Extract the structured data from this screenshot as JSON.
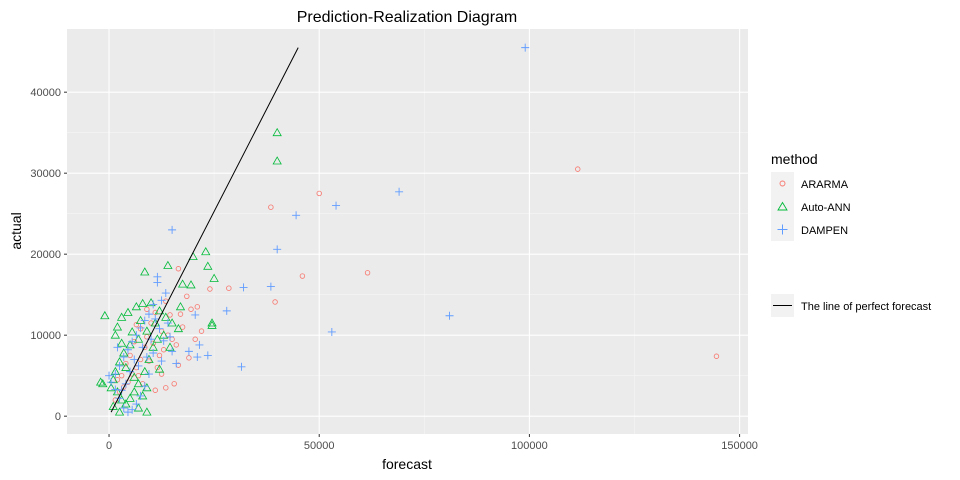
{
  "chart_data": {
    "type": "scatter",
    "title": "Prediction-Realization Diagram",
    "xlabel": "forecast",
    "ylabel": "actual",
    "xlim": [
      -10000,
      152000
    ],
    "ylim": [
      -2200,
      47800
    ],
    "x_ticks": [
      0,
      50000,
      100000,
      150000
    ],
    "x_tick_labels": [
      "0",
      "50000",
      "100000",
      "150000"
    ],
    "y_ticks": [
      0,
      10000,
      20000,
      30000,
      40000
    ],
    "y_tick_labels": [
      "0",
      "10000",
      "20000",
      "30000",
      "40000"
    ],
    "grid": true,
    "legend_position": "right",
    "legend": {
      "title": "method",
      "line_label": "The line of perfect forecast"
    },
    "perfect_forecast_line": {
      "x": [
        500,
        45000
      ],
      "y": [
        500,
        45500
      ]
    },
    "series": [
      {
        "name": "ARARMA",
        "marker": "circle",
        "color": "#F8766D",
        "points": [
          [
            111500,
            30500
          ],
          [
            144500,
            7400
          ],
          [
            61500,
            17700
          ],
          [
            50000,
            27500
          ],
          [
            46000,
            17300
          ],
          [
            38500,
            25800
          ],
          [
            39500,
            14100
          ],
          [
            28500,
            15800
          ],
          [
            24000,
            15700
          ],
          [
            19500,
            13200
          ],
          [
            21000,
            13500
          ],
          [
            16500,
            18200
          ],
          [
            18500,
            14800
          ],
          [
            17500,
            11000
          ],
          [
            15000,
            9500
          ],
          [
            13000,
            8200
          ],
          [
            12000,
            7500
          ],
          [
            14000,
            10000
          ],
          [
            15500,
            4000
          ],
          [
            16500,
            6300
          ],
          [
            13500,
            3500
          ],
          [
            11000,
            12800
          ],
          [
            10000,
            11500
          ],
          [
            9000,
            9800
          ],
          [
            8500,
            8500
          ],
          [
            7500,
            7000
          ],
          [
            6500,
            6000
          ],
          [
            5500,
            5200
          ],
          [
            4500,
            4200
          ],
          [
            3500,
            3600
          ],
          [
            2500,
            3000
          ],
          [
            1500,
            2000
          ],
          [
            9500,
            6800
          ],
          [
            10500,
            9000
          ],
          [
            12500,
            10500
          ],
          [
            14500,
            12500
          ],
          [
            11500,
            6000
          ],
          [
            6000,
            9200
          ],
          [
            7000,
            5000
          ],
          [
            8000,
            4000
          ],
          [
            5000,
            7500
          ],
          [
            4000,
            6500
          ],
          [
            3000,
            5000
          ],
          [
            2000,
            4500
          ],
          [
            16000,
            8800
          ],
          [
            17000,
            12600
          ],
          [
            22000,
            10500
          ],
          [
            19000,
            7200
          ],
          [
            20500,
            9500
          ],
          [
            13500,
            14200
          ],
          [
            9000,
            13200
          ],
          [
            7500,
            10800
          ],
          [
            6500,
            11300
          ],
          [
            12500,
            5200
          ],
          [
            11000,
            3200
          ]
        ]
      },
      {
        "name": "Auto-ANN",
        "marker": "triangle",
        "color": "#00BA38",
        "points": [
          [
            40000,
            35000
          ],
          [
            40000,
            31500
          ],
          [
            23000,
            20300
          ],
          [
            23500,
            18500
          ],
          [
            25000,
            17000
          ],
          [
            20000,
            19700
          ],
          [
            19500,
            16200
          ],
          [
            17500,
            16300
          ],
          [
            14000,
            18600
          ],
          [
            8500,
            17800
          ],
          [
            24500,
            11200
          ],
          [
            24500,
            11500
          ],
          [
            17000,
            13500
          ],
          [
            -1000,
            12400
          ],
          [
            -1500,
            4000
          ],
          [
            -2000,
            4200
          ],
          [
            1500,
            10000
          ],
          [
            2000,
            11000
          ],
          [
            3000,
            12200
          ],
          [
            4500,
            12800
          ],
          [
            6500,
            13500
          ],
          [
            8000,
            13900
          ],
          [
            10000,
            14000
          ],
          [
            12000,
            13000
          ],
          [
            13500,
            12200
          ],
          [
            15000,
            11500
          ],
          [
            16500,
            10800
          ],
          [
            11000,
            11500
          ],
          [
            9000,
            10500
          ],
          [
            7000,
            9500
          ],
          [
            5000,
            8800
          ],
          [
            3500,
            7800
          ],
          [
            2500,
            6700
          ],
          [
            1500,
            5500
          ],
          [
            1000,
            4500
          ],
          [
            500,
            3500
          ],
          [
            2000,
            3000
          ],
          [
            3000,
            2000
          ],
          [
            4000,
            1500
          ],
          [
            5000,
            2200
          ],
          [
            6000,
            3000
          ],
          [
            7000,
            4000
          ],
          [
            8500,
            5500
          ],
          [
            9500,
            7000
          ],
          [
            10500,
            8500
          ],
          [
            11500,
            9500
          ],
          [
            13000,
            10000
          ],
          [
            9000,
            3500
          ],
          [
            8000,
            2500
          ],
          [
            7000,
            1000
          ],
          [
            9000,
            500
          ],
          [
            6000,
            4800
          ],
          [
            4000,
            6000
          ],
          [
            3000,
            9000
          ],
          [
            12000,
            5800
          ],
          [
            14500,
            8500
          ],
          [
            2500,
            500
          ],
          [
            1000,
            1200
          ],
          [
            5500,
            10400
          ],
          [
            7500,
            11800
          ]
        ]
      },
      {
        "name": "DAMPEN",
        "marker": "plus",
        "color": "#619CFF",
        "points": [
          [
            99000,
            45500
          ],
          [
            69000,
            27700
          ],
          [
            54000,
            26000
          ],
          [
            44500,
            24800
          ],
          [
            40000,
            20600
          ],
          [
            38500,
            16000
          ],
          [
            53000,
            10400
          ],
          [
            81000,
            12400
          ],
          [
            32000,
            15900
          ],
          [
            31500,
            6100
          ],
          [
            28000,
            13000
          ],
          [
            23500,
            7500
          ],
          [
            21500,
            8800
          ],
          [
            21000,
            7300
          ],
          [
            19000,
            8000
          ],
          [
            20500,
            12500
          ],
          [
            15000,
            23000
          ],
          [
            11500,
            17200
          ],
          [
            11500,
            16500
          ],
          [
            13500,
            15200
          ],
          [
            12500,
            14300
          ],
          [
            10500,
            13800
          ],
          [
            9500,
            12600
          ],
          [
            8500,
            11800
          ],
          [
            7500,
            10900
          ],
          [
            6500,
            10000
          ],
          [
            5500,
            9200
          ],
          [
            4500,
            8200
          ],
          [
            3500,
            7300
          ],
          [
            2500,
            6200
          ],
          [
            1500,
            5200
          ],
          [
            500,
            4200
          ],
          [
            14500,
            9800
          ],
          [
            16000,
            6500
          ],
          [
            15000,
            8000
          ],
          [
            13000,
            9300
          ],
          [
            12000,
            10800
          ],
          [
            10500,
            7800
          ],
          [
            9500,
            5200
          ],
          [
            8500,
            3700
          ],
          [
            7500,
            2500
          ],
          [
            6500,
            1500
          ],
          [
            5500,
            800
          ],
          [
            4500,
            500
          ],
          [
            3500,
            1000
          ],
          [
            2500,
            2200
          ],
          [
            1500,
            3300
          ],
          [
            10000,
            9500
          ],
          [
            11000,
            12000
          ],
          [
            8000,
            8500
          ],
          [
            6000,
            7000
          ],
          [
            5000,
            5500
          ],
          [
            4000,
            4000
          ],
          [
            3000,
            3200
          ],
          [
            7000,
            6200
          ],
          [
            9000,
            7300
          ],
          [
            12500,
            6800
          ],
          [
            14000,
            11500
          ],
          [
            2000,
            8500
          ],
          [
            0,
            5000
          ]
        ]
      }
    ]
  }
}
